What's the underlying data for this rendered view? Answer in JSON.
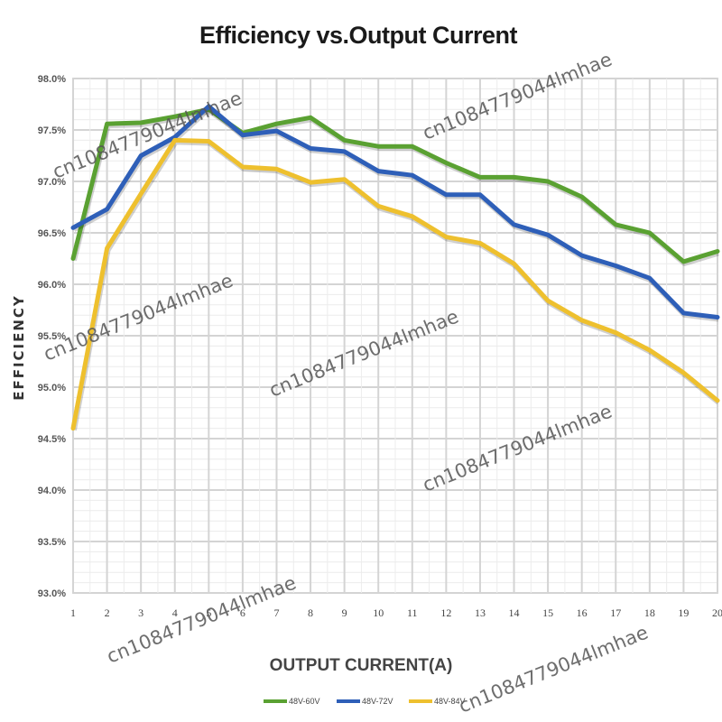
{
  "chart_data": {
    "type": "line",
    "title": "Efficiency vs.Output Current",
    "xlabel": "OUTPUT CURRENT(A)",
    "ylabel": "EFFICIENCY",
    "x": [
      1,
      2,
      3,
      4,
      5,
      6,
      7,
      8,
      9,
      10,
      11,
      12,
      13,
      14,
      15,
      16,
      17,
      18,
      19,
      20
    ],
    "x_tick_labels": [
      "1",
      "2",
      "3",
      "4",
      "5",
      "6",
      "7",
      "8",
      "9",
      "10",
      "11",
      "12",
      "13",
      "14",
      "15",
      "16",
      "17",
      "18",
      "19",
      "20"
    ],
    "ylim": [
      93.0,
      98.0
    ],
    "y_ticks": [
      93.0,
      93.5,
      94.0,
      94.5,
      95.0,
      95.5,
      96.0,
      96.5,
      97.0,
      97.5,
      98.0
    ],
    "y_tick_labels": [
      "93.0%",
      "93.5%",
      "94.0%",
      "94.5%",
      "95.0%",
      "95.5%",
      "96.0%",
      "96.5%",
      "97.0%",
      "97.5%",
      "98.0%"
    ],
    "grid": true,
    "legend_position": "bottom",
    "series": [
      {
        "name": "48V-60V",
        "color": "#5aa132",
        "values": [
          96.25,
          97.56,
          97.57,
          97.63,
          97.7,
          97.47,
          97.56,
          97.62,
          97.4,
          97.34,
          97.34,
          97.18,
          97.04,
          97.04,
          97.0,
          96.85,
          96.58,
          96.5,
          96.22,
          96.32
        ]
      },
      {
        "name": "48V-72V",
        "color": "#2e5fb8",
        "values": [
          96.55,
          96.73,
          97.25,
          97.43,
          97.73,
          97.45,
          97.49,
          97.32,
          97.29,
          97.1,
          97.06,
          96.87,
          96.87,
          96.58,
          96.48,
          96.28,
          96.18,
          96.06,
          95.72,
          95.68
        ]
      },
      {
        "name": "48V-84V",
        "color": "#eec02e",
        "values": [
          94.6,
          96.35,
          96.88,
          97.4,
          97.39,
          97.14,
          97.12,
          96.99,
          97.02,
          96.76,
          96.66,
          96.46,
          96.4,
          96.2,
          95.84,
          95.65,
          95.53,
          95.36,
          95.14,
          94.87
        ]
      }
    ]
  },
  "watermarks": [
    "cn1084779044lmhae",
    "cn1084779044lmhae",
    "cn1084779044lmhae",
    "cn1084779044lmhae",
    "cn1084779044lmhae",
    "cn1084779044lmhae",
    "cn1084779044lmhae"
  ]
}
